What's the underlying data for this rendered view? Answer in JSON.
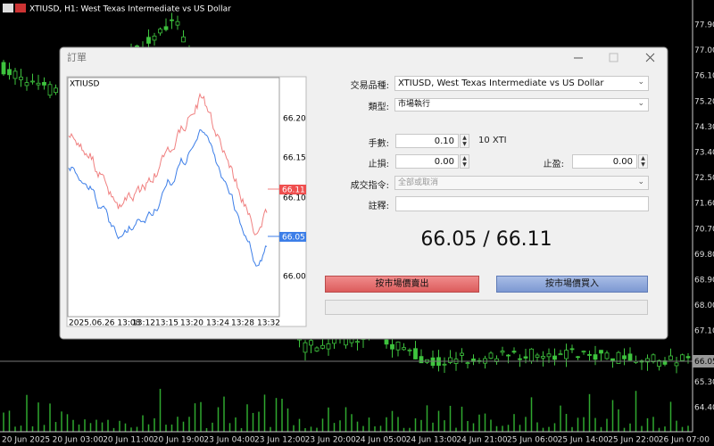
{
  "header": {
    "symbol_info": "XTIUSD, H1:  West Texas Intermediate vs US Dollar"
  },
  "price_axis": {
    "labels": [
      "77.90",
      "77.00",
      "76.10",
      "75.20",
      "74.30",
      "73.40",
      "72.50",
      "71.60",
      "70.70",
      "69.80",
      "68.90",
      "68.00",
      "67.10",
      "65.30",
      "64.40"
    ],
    "current_price": "66.05"
  },
  "time_axis": {
    "labels": [
      "20 Jun 2025",
      "20 Jun 03:00",
      "20 Jun 11:00",
      "20 Jun 19:00",
      "23 Jun 04:00",
      "23 Jun 12:00",
      "23 Jun 20:00",
      "24 Jun 05:00",
      "24 Jun 13:00",
      "24 Jun 21:00",
      "25 Jun 06:00",
      "25 Jun 14:00",
      "25 Jun 22:00",
      "26 Jun 07:00"
    ]
  },
  "dialog": {
    "title": "訂單",
    "preview": {
      "symbol": "XTIUSD",
      "price_labels": [
        "66.20",
        "66.15",
        "66.10",
        "66.00"
      ],
      "ask_label": "66.11",
      "bid_label": "66.05",
      "time_labels": [
        "2025.06.26 13:08",
        "13:12",
        "13:15",
        "13:20",
        "13:24",
        "13:28",
        "13:32"
      ]
    },
    "form": {
      "symbol_label": "交易品種:",
      "symbol_value": "XTIUSD, West Texas Intermediate vs US Dollar",
      "type_label": "類型:",
      "type_value": "市場執行",
      "volume_label": "手數:",
      "volume_value": "0.10",
      "volume_unit": "10 XTI",
      "sl_label": "止損:",
      "sl_value": "0.00",
      "tp_label": "止盈:",
      "tp_value": "0.00",
      "filling_label": "成交指令:",
      "filling_value": "全部或取消",
      "comment_label": "註釋:",
      "quote": "66.05 / 66.11",
      "sell_button": "按市場價賣出",
      "buy_button": "按市場價買入"
    }
  }
}
